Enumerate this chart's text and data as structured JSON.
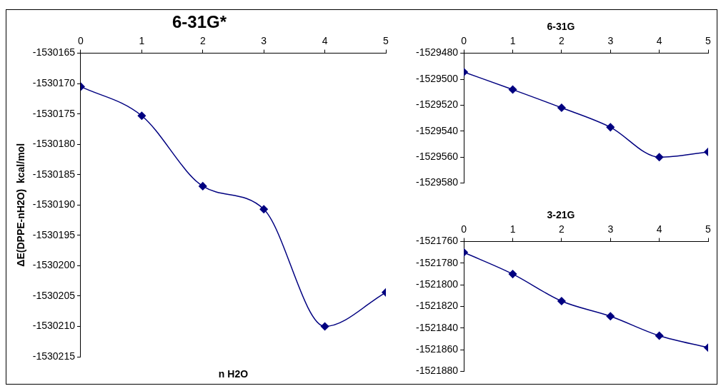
{
  "chart_data": [
    {
      "type": "line",
      "title": "6-31G*",
      "xlabel": "n H2O",
      "ylabel": "ΔE(DPPE-nH2O)  kcal/mol",
      "x": [
        0,
        1,
        2,
        3,
        4,
        5
      ],
      "xlim": [
        0,
        5
      ],
      "xticks": [
        0,
        1,
        2,
        3,
        4,
        5
      ],
      "ylim": [
        -1530215,
        -1530165
      ],
      "yticks": [
        -1530215,
        -1530210,
        -1530205,
        -1530200,
        -1530195,
        -1530190,
        -1530185,
        -1530180,
        -1530175,
        -1530170,
        -1530165
      ],
      "marker": "diamond",
      "grid": false,
      "legend": false,
      "series": [
        {
          "color": "#000080",
          "values": [
            -1530170.5,
            -1530175.3,
            -1530186.9,
            -1530190.7,
            -1530210,
            -1530204.4
          ]
        }
      ]
    },
    {
      "type": "line",
      "title": "6-31G",
      "x": [
        0,
        1,
        2,
        3,
        4,
        5
      ],
      "xlim": [
        0,
        5
      ],
      "xticks": [
        0,
        1,
        2,
        3,
        4,
        5
      ],
      "ylim": [
        -1529580,
        -1529480
      ],
      "yticks": [
        -1529580,
        -1529560,
        -1529540,
        -1529520,
        -1529500,
        -1529480
      ],
      "marker": "diamond",
      "grid": false,
      "legend": false,
      "series": [
        {
          "color": "#000080",
          "values": [
            -1529494.5,
            -1529508,
            -1529522,
            -1529537,
            -1529560,
            -1529556
          ]
        }
      ]
    },
    {
      "type": "line",
      "title": "3-21G",
      "x": [
        0,
        1,
        2,
        3,
        4,
        5
      ],
      "xlim": [
        0,
        5
      ],
      "xticks": [
        0,
        1,
        2,
        3,
        4,
        5
      ],
      "ylim": [
        -1521880,
        -1521760
      ],
      "yticks": [
        -1521880,
        -1521860,
        -1521840,
        -1521820,
        -1521800,
        -1521780,
        -1521760
      ],
      "marker": "diamond",
      "grid": false,
      "legend": false,
      "series": [
        {
          "color": "#000080",
          "values": [
            -1521770,
            -1521790,
            -1521815,
            -1521829,
            -1521847,
            -1521858
          ]
        }
      ]
    }
  ]
}
